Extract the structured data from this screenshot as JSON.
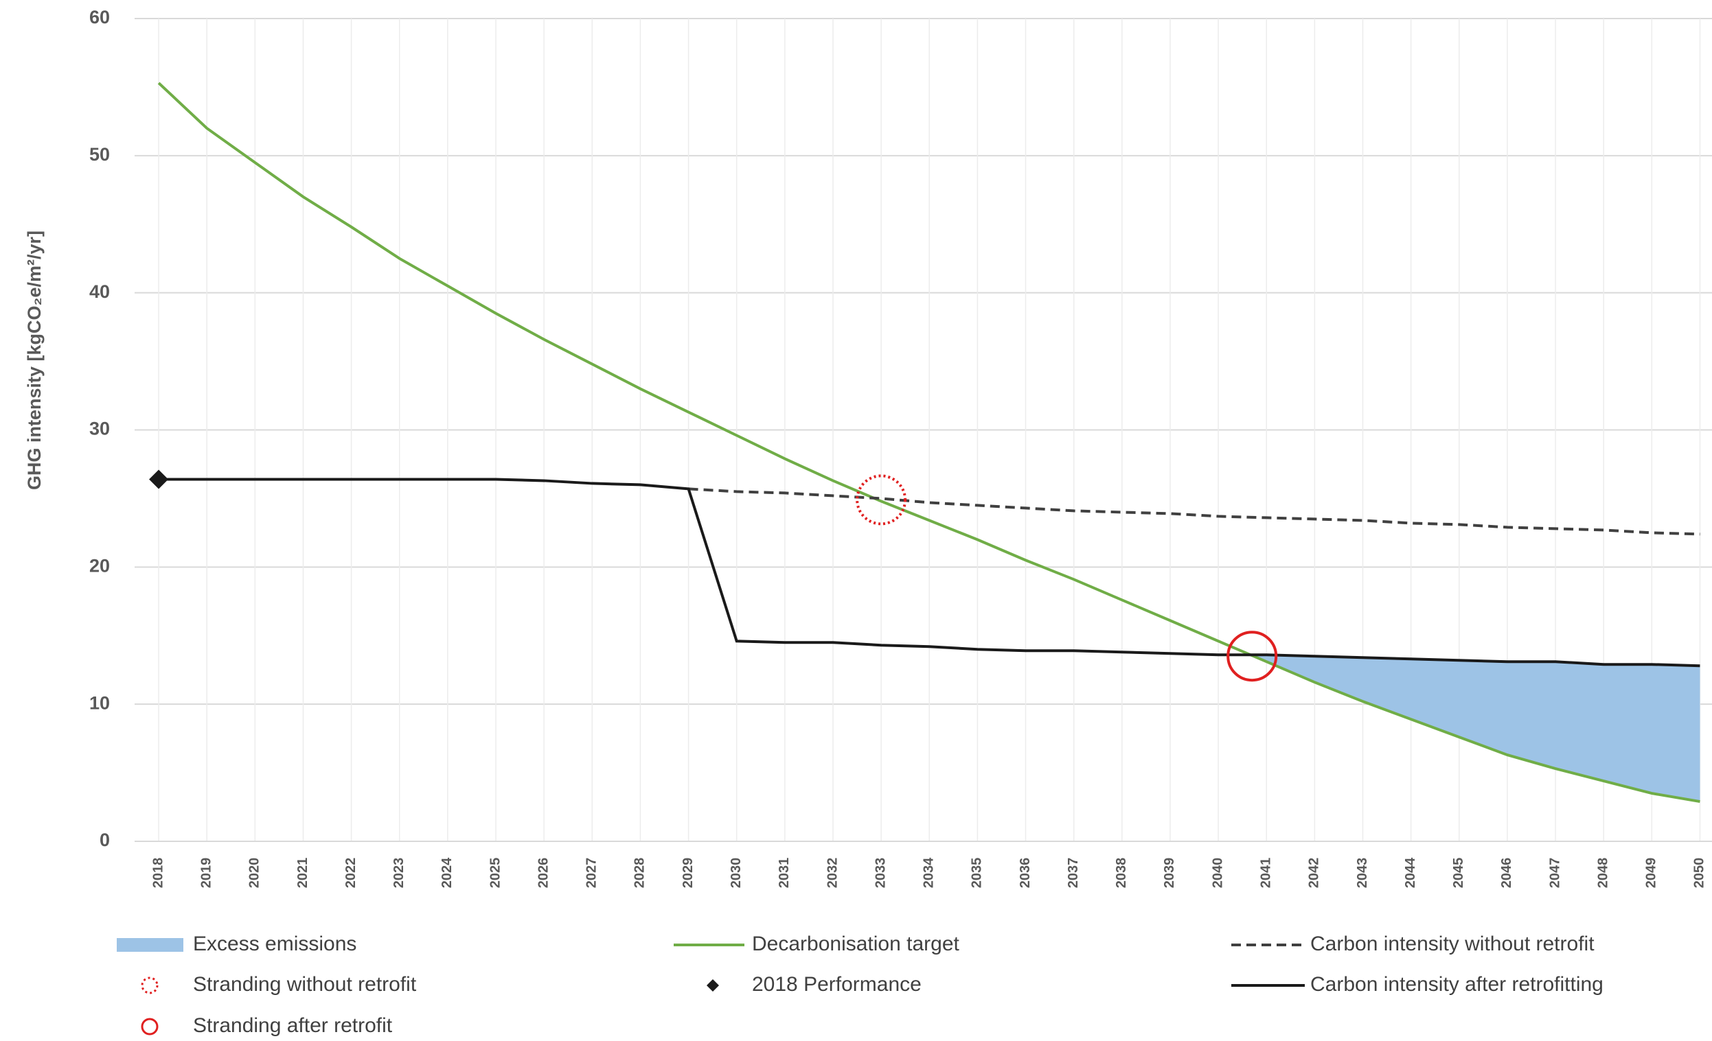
{
  "chart_data": {
    "type": "line",
    "y_label": "GHG intensity [kgCO₂e/m²/yr]",
    "x": [
      2018,
      2019,
      2020,
      2021,
      2022,
      2023,
      2024,
      2025,
      2026,
      2027,
      2028,
      2029,
      2030,
      2031,
      2032,
      2033,
      2034,
      2035,
      2036,
      2037,
      2038,
      2039,
      2040,
      2041,
      2042,
      2043,
      2044,
      2045,
      2046,
      2047,
      2048,
      2049,
      2050
    ],
    "xlim": [
      2017.5,
      2050.25
    ],
    "xticks": [
      2018,
      2019,
      2020,
      2021,
      2022,
      2023,
      2024,
      2025,
      2026,
      2027,
      2028,
      2029,
      2030,
      2031,
      2032,
      2033,
      2034,
      2035,
      2036,
      2037,
      2038,
      2039,
      2040,
      2041,
      2042,
      2043,
      2044,
      2045,
      2046,
      2047,
      2048,
      2049,
      2050
    ],
    "ylim": [
      0,
      60
    ],
    "yticks": [
      0,
      10,
      20,
      30,
      40,
      50,
      60
    ],
    "grid": true,
    "series": [
      {
        "name": "Decarbonisation target",
        "color": "#70ad47",
        "style": "solid",
        "values": [
          55.3,
          52,
          49.5,
          47,
          44.8,
          42.5,
          40.5,
          38.5,
          36.6,
          34.8,
          33,
          31.3,
          29.6,
          27.9,
          26.3,
          24.8,
          23.4,
          22,
          20.5,
          19.1,
          17.6,
          16.1,
          14.6,
          13.1,
          11.6,
          10.2,
          8.9,
          7.6,
          6.3,
          5.3,
          4.4,
          3.5,
          2.9
        ]
      },
      {
        "name": "Carbon intensity without retrofit",
        "color": "#404040",
        "style": "dashed",
        "values": [
          null,
          null,
          null,
          null,
          null,
          null,
          null,
          null,
          null,
          null,
          null,
          25.7,
          25.5,
          25.4,
          25.2,
          25,
          24.7,
          24.5,
          24.3,
          24.1,
          24,
          23.9,
          23.7,
          23.6,
          23.5,
          23.4,
          23.2,
          23.1,
          22.9,
          22.8,
          22.7,
          22.5,
          22.4
        ]
      },
      {
        "name": "Carbon intensity after retrofitting",
        "color": "#1a1a1a",
        "style": "solid",
        "values": [
          26.4,
          26.4,
          26.4,
          26.4,
          26.4,
          26.4,
          26.4,
          26.4,
          26.3,
          26.1,
          26,
          25.7,
          14.6,
          14.5,
          14.5,
          14.3,
          14.2,
          14,
          13.9,
          13.9,
          13.8,
          13.7,
          13.6,
          13.6,
          13.5,
          13.4,
          13.3,
          13.2,
          13.1,
          13.1,
          12.9,
          12.9,
          12.8
        ]
      }
    ],
    "area": {
      "name": "Excess emissions",
      "color": "#9dc3e6"
    },
    "points": [
      {
        "name": "Stranding without retrofit",
        "x": 2033,
        "y": 24.9,
        "color": "#e02020",
        "style": "dotted"
      },
      {
        "name": "2018 Performance",
        "x": 2018,
        "y": 26.4,
        "color": "#1a1a1a",
        "style": "diamond"
      },
      {
        "name": "Stranding after retrofit",
        "x": 2040.7,
        "y": 13.5,
        "color": "#e02020",
        "style": "solid"
      }
    ]
  }
}
